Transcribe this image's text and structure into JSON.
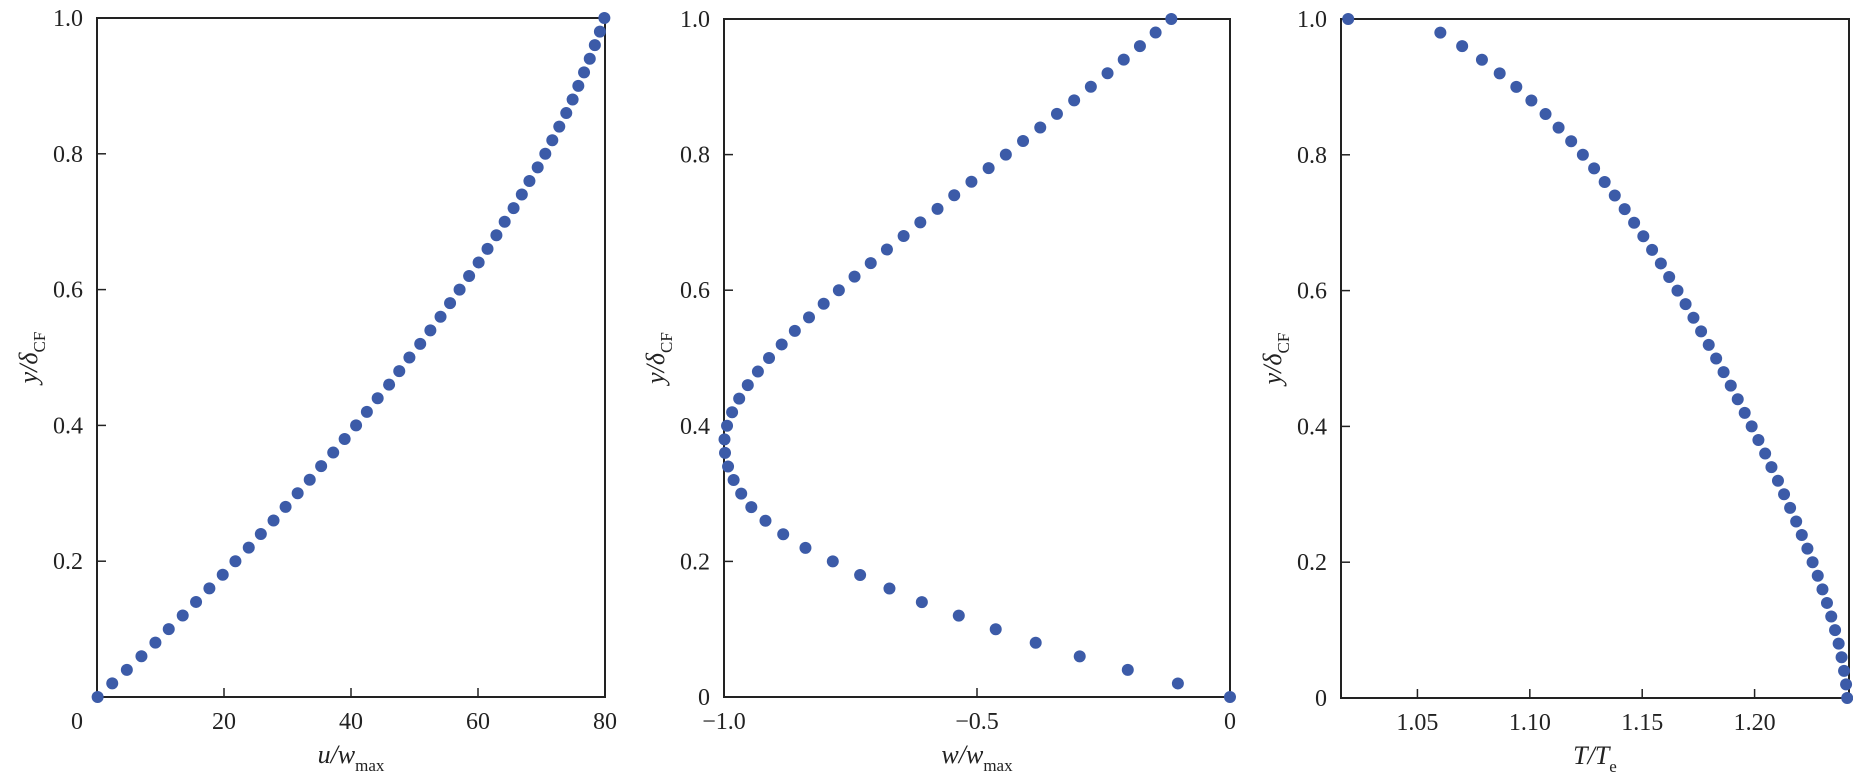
{
  "colors": {
    "marker": "#3c5ba8",
    "frame": "#222222"
  },
  "chart_data": [
    {
      "type": "scatter",
      "xlabel": {
        "main": "u/w",
        "sub": "max"
      },
      "ylabel": {
        "main": "y/δ",
        "sub": "CF"
      },
      "xlim": [
        0,
        80
      ],
      "ylim": [
        0,
        1
      ],
      "xticks": [
        {
          "value": 0,
          "label": "0",
          "outside": true
        },
        {
          "value": 20,
          "label": "20"
        },
        {
          "value": 40,
          "label": "40"
        },
        {
          "value": 60,
          "label": "60"
        },
        {
          "value": 80,
          "label": "80"
        }
      ],
      "yticks": [
        {
          "value": 0.2,
          "label": "0.2"
        },
        {
          "value": 0.4,
          "label": "0.4"
        },
        {
          "value": 0.6,
          "label": "0.6"
        },
        {
          "value": 0.8,
          "label": "0.8"
        },
        {
          "value": 1.0,
          "label": "1.0"
        }
      ],
      "points": [
        [
          0.1,
          0.0
        ],
        [
          2.4,
          0.02
        ],
        [
          4.7,
          0.04
        ],
        [
          7.0,
          0.06
        ],
        [
          9.2,
          0.08
        ],
        [
          11.3,
          0.1
        ],
        [
          13.5,
          0.12
        ],
        [
          15.6,
          0.14
        ],
        [
          17.7,
          0.16
        ],
        [
          19.8,
          0.18
        ],
        [
          21.8,
          0.2
        ],
        [
          23.9,
          0.22
        ],
        [
          25.8,
          0.24
        ],
        [
          27.8,
          0.26
        ],
        [
          29.7,
          0.28
        ],
        [
          31.6,
          0.3
        ],
        [
          33.5,
          0.32
        ],
        [
          35.3,
          0.34
        ],
        [
          37.2,
          0.36
        ],
        [
          39.0,
          0.38
        ],
        [
          40.8,
          0.4
        ],
        [
          42.5,
          0.42
        ],
        [
          44.2,
          0.44
        ],
        [
          46.0,
          0.46
        ],
        [
          47.6,
          0.48
        ],
        [
          49.2,
          0.5
        ],
        [
          50.9,
          0.52
        ],
        [
          52.5,
          0.54
        ],
        [
          54.1,
          0.56
        ],
        [
          55.6,
          0.58
        ],
        [
          57.1,
          0.6
        ],
        [
          58.6,
          0.62
        ],
        [
          60.1,
          0.64
        ],
        [
          61.5,
          0.66
        ],
        [
          62.9,
          0.68
        ],
        [
          64.2,
          0.7
        ],
        [
          65.6,
          0.72
        ],
        [
          66.9,
          0.74
        ],
        [
          68.1,
          0.76
        ],
        [
          69.4,
          0.78
        ],
        [
          70.6,
          0.8
        ],
        [
          71.7,
          0.82
        ],
        [
          72.8,
          0.84
        ],
        [
          73.9,
          0.86
        ],
        [
          74.9,
          0.88
        ],
        [
          75.8,
          0.9
        ],
        [
          76.7,
          0.92
        ],
        [
          77.6,
          0.94
        ],
        [
          78.4,
          0.96
        ],
        [
          79.2,
          0.98
        ],
        [
          79.9,
          1.0
        ]
      ]
    },
    {
      "type": "scatter",
      "xlabel": {
        "main": "w/w",
        "sub": "max"
      },
      "ylabel": {
        "main": "y/δ",
        "sub": "CF"
      },
      "xlim": [
        -1,
        0
      ],
      "ylim": [
        0,
        1
      ],
      "xticks": [
        {
          "value": -1,
          "label": "−1.0"
        },
        {
          "value": -0.5,
          "label": "−0.5"
        },
        {
          "value": 0,
          "label": "0"
        }
      ],
      "yticks": [
        {
          "value": 0,
          "label": "0"
        },
        {
          "value": 0.2,
          "label": "0.2"
        },
        {
          "value": 0.4,
          "label": "0.4"
        },
        {
          "value": 0.6,
          "label": "0.6"
        },
        {
          "value": 0.8,
          "label": "0.8"
        },
        {
          "value": 1.0,
          "label": "1.0"
        }
      ],
      "points": [
        [
          0.0,
          0.0
        ],
        [
          -0.103,
          0.02
        ],
        [
          -0.202,
          0.04
        ],
        [
          -0.297,
          0.06
        ],
        [
          -0.384,
          0.08
        ],
        [
          -0.463,
          0.1
        ],
        [
          -0.536,
          0.12
        ],
        [
          -0.609,
          0.14
        ],
        [
          -0.673,
          0.16
        ],
        [
          -0.731,
          0.18
        ],
        [
          -0.785,
          0.2
        ],
        [
          -0.839,
          0.22
        ],
        [
          -0.883,
          0.24
        ],
        [
          -0.918,
          0.26
        ],
        [
          -0.946,
          0.28
        ],
        [
          -0.966,
          0.3
        ],
        [
          -0.981,
          0.32
        ],
        [
          -0.992,
          0.34
        ],
        [
          -0.998,
          0.36
        ],
        [
          -0.999,
          0.38
        ],
        [
          -0.994,
          0.4
        ],
        [
          -0.984,
          0.42
        ],
        [
          -0.97,
          0.44
        ],
        [
          -0.953,
          0.46
        ],
        [
          -0.933,
          0.48
        ],
        [
          -0.911,
          0.5
        ],
        [
          -0.886,
          0.52
        ],
        [
          -0.86,
          0.54
        ],
        [
          -0.832,
          0.56
        ],
        [
          -0.803,
          0.58
        ],
        [
          -0.773,
          0.6
        ],
        [
          -0.742,
          0.62
        ],
        [
          -0.71,
          0.64
        ],
        [
          -0.678,
          0.66
        ],
        [
          -0.645,
          0.68
        ],
        [
          -0.612,
          0.7
        ],
        [
          -0.578,
          0.72
        ],
        [
          -0.545,
          0.74
        ],
        [
          -0.511,
          0.76
        ],
        [
          -0.477,
          0.78
        ],
        [
          -0.443,
          0.8
        ],
        [
          -0.409,
          0.82
        ],
        [
          -0.375,
          0.84
        ],
        [
          -0.342,
          0.86
        ],
        [
          -0.308,
          0.88
        ],
        [
          -0.275,
          0.9
        ],
        [
          -0.242,
          0.92
        ],
        [
          -0.21,
          0.94
        ],
        [
          -0.178,
          0.96
        ],
        [
          -0.147,
          0.98
        ],
        [
          -0.116,
          1.0
        ]
      ]
    },
    {
      "type": "scatter",
      "xlabel": {
        "main": "T/T",
        "sub": "e"
      },
      "ylabel": {
        "main": "y/δ",
        "sub": "CF"
      },
      "xlim": [
        1.016,
        1.242
      ],
      "ylim": [
        0,
        1
      ],
      "xticks": [
        {
          "value": 1.05,
          "label": "1.05"
        },
        {
          "value": 1.1,
          "label": "1.10"
        },
        {
          "value": 1.15,
          "label": "1.15"
        },
        {
          "value": 1.2,
          "label": "1.20"
        }
      ],
      "yticks": [
        {
          "value": 0,
          "label": "0"
        },
        {
          "value": 0.2,
          "label": "0.2"
        },
        {
          "value": 0.4,
          "label": "0.4"
        },
        {
          "value": 0.6,
          "label": "0.6"
        },
        {
          "value": 0.8,
          "label": "0.8"
        },
        {
          "value": 1.0,
          "label": "1.0"
        }
      ],
      "points": [
        [
          1.2412,
          0.0
        ],
        [
          1.2407,
          0.02
        ],
        [
          1.2398,
          0.04
        ],
        [
          1.2387,
          0.06
        ],
        [
          1.2374,
          0.08
        ],
        [
          1.2358,
          0.1
        ],
        [
          1.2341,
          0.12
        ],
        [
          1.2322,
          0.14
        ],
        [
          1.2302,
          0.16
        ],
        [
          1.2281,
          0.18
        ],
        [
          1.2258,
          0.2
        ],
        [
          1.2235,
          0.22
        ],
        [
          1.221,
          0.24
        ],
        [
          1.2185,
          0.26
        ],
        [
          1.2158,
          0.28
        ],
        [
          1.2131,
          0.3
        ],
        [
          1.2104,
          0.32
        ],
        [
          1.2075,
          0.34
        ],
        [
          1.2047,
          0.36
        ],
        [
          1.2017,
          0.38
        ],
        [
          1.1987,
          0.4
        ],
        [
          1.1956,
          0.42
        ],
        [
          1.1925,
          0.44
        ],
        [
          1.1894,
          0.46
        ],
        [
          1.1862,
          0.48
        ],
        [
          1.1829,
          0.5
        ],
        [
          1.1796,
          0.52
        ],
        [
          1.1762,
          0.54
        ],
        [
          1.1728,
          0.56
        ],
        [
          1.1693,
          0.58
        ],
        [
          1.1657,
          0.6
        ],
        [
          1.162,
          0.62
        ],
        [
          1.1583,
          0.64
        ],
        [
          1.1544,
          0.66
        ],
        [
          1.1505,
          0.68
        ],
        [
          1.1464,
          0.7
        ],
        [
          1.1422,
          0.72
        ],
        [
          1.1378,
          0.74
        ],
        [
          1.1333,
          0.76
        ],
        [
          1.1286,
          0.78
        ],
        [
          1.1236,
          0.8
        ],
        [
          1.1184,
          0.82
        ],
        [
          1.1128,
          0.84
        ],
        [
          1.107,
          0.86
        ],
        [
          1.1007,
          0.88
        ],
        [
          1.094,
          0.9
        ],
        [
          1.0866,
          0.92
        ],
        [
          1.0787,
          0.94
        ],
        [
          1.0699,
          0.96
        ],
        [
          1.0602,
          0.98
        ],
        [
          1.0192,
          1.0
        ]
      ]
    }
  ]
}
